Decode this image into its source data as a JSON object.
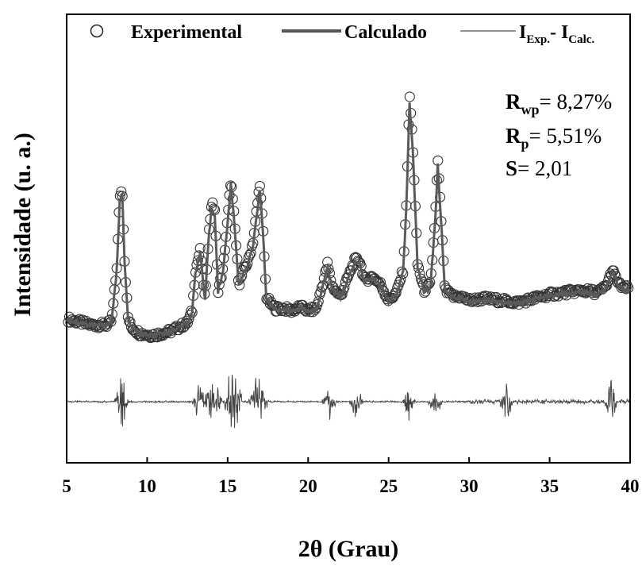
{
  "chart_data": {
    "type": "line",
    "xlabel": "2θ (Grau)",
    "ylabel": "Intensidade (u. a.)",
    "xlim": [
      5,
      40
    ],
    "xticks": [
      5,
      10,
      15,
      20,
      25,
      30,
      35,
      40
    ],
    "xtick_labels": [
      "5",
      "10",
      "15",
      "20",
      "25",
      "30",
      "35",
      "40"
    ],
    "legend": {
      "placement": "top",
      "experimental": "Experimental",
      "calculated": "Calculado",
      "diff_main_1": "I",
      "diff_sub_1": "Exp.",
      "diff_sep": "- I",
      "diff_sub_2": "Calc."
    },
    "stats": {
      "rwp_letter": "R",
      "rwp_sub": "wp",
      "rwp_value": "= 8,27%",
      "rp_letter": "R",
      "rp_sub": "p",
      "rp_value": "= 5,51%",
      "s_letter": "S",
      "s_value": "= 2,01"
    },
    "series": [
      {
        "name": "Experimental",
        "style": "open-circles",
        "x": [
          5.0,
          5.5,
          6.0,
          6.5,
          7.0,
          7.5,
          7.8,
          8.1,
          8.3,
          8.45,
          8.6,
          8.8,
          9.0,
          9.5,
          10.0,
          10.5,
          11.0,
          11.5,
          12.0,
          12.5,
          12.8,
          13.0,
          13.3,
          13.6,
          13.8,
          14.0,
          14.2,
          14.4,
          14.7,
          15.0,
          15.2,
          15.4,
          15.7,
          16.0,
          16.3,
          16.6,
          16.8,
          17.0,
          17.2,
          17.4,
          17.7,
          18.0,
          18.5,
          19.0,
          19.5,
          20.0,
          20.5,
          20.9,
          21.2,
          21.5,
          22.0,
          22.5,
          22.9,
          23.2,
          23.5,
          24.0,
          24.5,
          25.0,
          25.5,
          25.9,
          26.1,
          26.3,
          26.5,
          26.8,
          27.2,
          27.6,
          27.9,
          28.05,
          28.2,
          28.5,
          29.0,
          29.5,
          30.0,
          31.0,
          32.0,
          33.0,
          34.0,
          35.0,
          36.0,
          37.0,
          38.0,
          38.5,
          38.9,
          39.3,
          39.7,
          40.0
        ],
        "y": [
          31,
          30,
          29,
          28,
          28,
          28,
          30,
          55,
          92,
          95,
          60,
          32,
          27,
          24,
          23,
          23,
          24,
          25,
          27,
          29,
          35,
          55,
          65,
          40,
          70,
          88,
          85,
          45,
          55,
          80,
          100,
          82,
          48,
          55,
          60,
          70,
          84,
          98,
          75,
          42,
          38,
          36,
          36,
          35,
          37,
          35,
          36,
          48,
          58,
          47,
          42,
          52,
          60,
          60,
          50,
          52,
          48,
          40,
          44,
          55,
          88,
          142,
          118,
          58,
          45,
          48,
          82,
          110,
          90,
          45,
          42,
          42,
          40,
          41,
          40,
          39,
          41,
          43,
          44,
          45,
          44,
          47,
          55,
          48,
          46,
          46
        ]
      },
      {
        "name": "Calculado",
        "style": "thick-line"
      },
      {
        "name": "IExp.- ICalc.",
        "style": "thin-line",
        "peaks": [
          8.4,
          13.2,
          13.8,
          14.3,
          15.2,
          15.5,
          16.7,
          17.1,
          21.3,
          23.0,
          26.2,
          27.9,
          32.3,
          38.8
        ]
      }
    ]
  }
}
